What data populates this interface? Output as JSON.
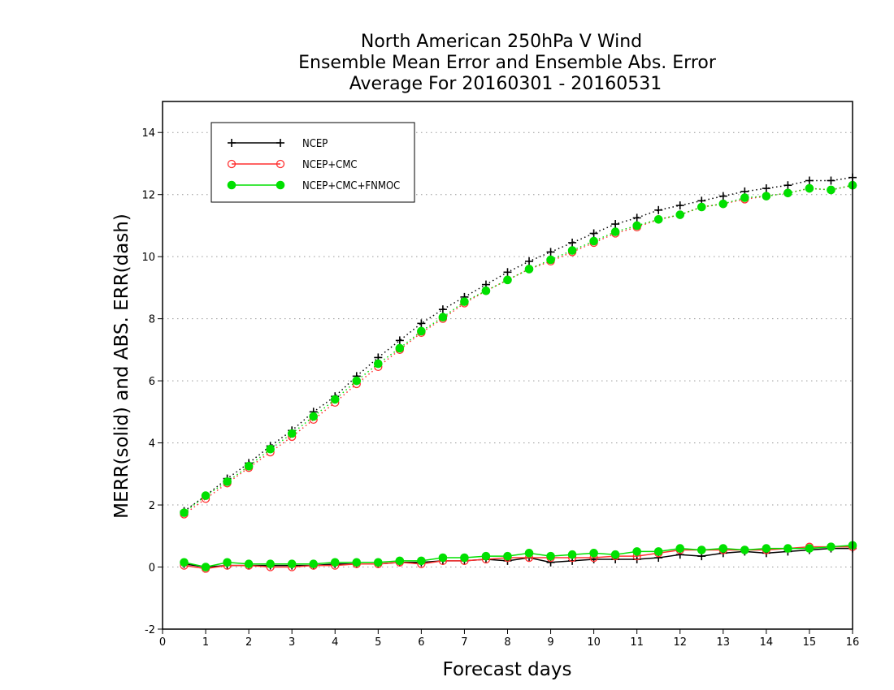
{
  "chart_data": {
    "type": "line",
    "title_lines": [
      "North American 250hPa V Wind",
      "Ensemble Mean Error and Ensemble Abs. Error",
      "Average For 20160301 - 20160531"
    ],
    "xlabel": "Forecast days",
    "ylabel": "MERR(solid) and ABS. ERR(dash)",
    "xlim": [
      0,
      16
    ],
    "ylim": [
      -2,
      15
    ],
    "x_ticks": [
      0,
      1,
      2,
      3,
      4,
      5,
      6,
      7,
      8,
      9,
      10,
      11,
      12,
      13,
      14,
      15,
      16
    ],
    "y_ticks": [
      -2,
      0,
      2,
      4,
      6,
      8,
      10,
      12,
      14
    ],
    "grid": "horizontal dotted",
    "legend_position": "top-left",
    "x": [
      0.5,
      1,
      1.5,
      2,
      2.5,
      3,
      3.5,
      4,
      4.5,
      5,
      5.5,
      6,
      6.5,
      7,
      7.5,
      8,
      8.5,
      9,
      9.5,
      10,
      10.5,
      11,
      11.5,
      12,
      12.5,
      13,
      13.5,
      14,
      14.5,
      15,
      15.5,
      16
    ],
    "series": [
      {
        "name": "NCEP",
        "color": "#000000",
        "marker": "plus",
        "abs_err": [
          1.8,
          2.3,
          2.85,
          3.35,
          3.9,
          4.4,
          5.0,
          5.5,
          6.15,
          6.75,
          7.3,
          7.85,
          8.3,
          8.7,
          9.1,
          9.5,
          9.85,
          10.15,
          10.45,
          10.75,
          11.05,
          11.25,
          11.5,
          11.65,
          11.8,
          11.95,
          12.1,
          12.2,
          12.3,
          12.45,
          12.45,
          12.55
        ],
        "mean_err": [
          0.1,
          0.0,
          0.05,
          0.05,
          0.05,
          0.05,
          0.05,
          0.1,
          0.1,
          0.1,
          0.15,
          0.15,
          0.2,
          0.2,
          0.25,
          0.2,
          0.3,
          0.15,
          0.2,
          0.25,
          0.25,
          0.25,
          0.3,
          0.4,
          0.35,
          0.45,
          0.5,
          0.45,
          0.5,
          0.55,
          0.6,
          0.6
        ]
      },
      {
        "name": "NCEP+CMC",
        "color": "#ff3030",
        "marker": "open-circle",
        "abs_err": [
          1.7,
          2.2,
          2.7,
          3.2,
          3.7,
          4.2,
          4.75,
          5.3,
          5.9,
          6.45,
          7.0,
          7.55,
          8.0,
          8.5,
          8.9,
          9.25,
          9.6,
          9.85,
          10.15,
          10.45,
          10.75,
          10.95,
          11.2,
          11.35,
          11.6,
          11.7,
          11.85,
          11.95,
          12.05,
          12.2,
          12.15,
          12.3
        ],
        "mean_err": [
          0.05,
          -0.05,
          0.05,
          0.05,
          0.0,
          0.0,
          0.05,
          0.05,
          0.1,
          0.1,
          0.15,
          0.1,
          0.2,
          0.2,
          0.25,
          0.3,
          0.3,
          0.3,
          0.3,
          0.3,
          0.35,
          0.35,
          0.45,
          0.55,
          0.55,
          0.55,
          0.55,
          0.55,
          0.6,
          0.65,
          0.65,
          0.65
        ]
      },
      {
        "name": "NCEP+CMC+FNMOC",
        "color": "#00e000",
        "marker": "filled-circle",
        "abs_err": [
          1.75,
          2.3,
          2.75,
          3.25,
          3.8,
          4.3,
          4.85,
          5.4,
          6.0,
          6.55,
          7.05,
          7.6,
          8.05,
          8.55,
          8.9,
          9.25,
          9.6,
          9.9,
          10.2,
          10.5,
          10.8,
          11.0,
          11.2,
          11.35,
          11.6,
          11.7,
          11.9,
          11.95,
          12.05,
          12.2,
          12.15,
          12.3
        ],
        "mean_err": [
          0.15,
          0.0,
          0.15,
          0.1,
          0.1,
          0.1,
          0.1,
          0.15,
          0.15,
          0.15,
          0.2,
          0.2,
          0.3,
          0.3,
          0.35,
          0.35,
          0.45,
          0.35,
          0.4,
          0.45,
          0.4,
          0.5,
          0.5,
          0.6,
          0.55,
          0.6,
          0.55,
          0.6,
          0.6,
          0.6,
          0.65,
          0.7
        ]
      }
    ]
  }
}
